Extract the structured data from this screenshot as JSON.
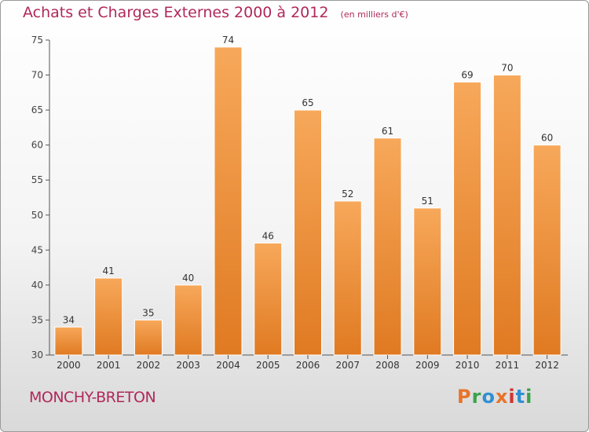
{
  "chart_data": {
    "type": "bar",
    "title": "Achats et Charges Externes 2000 à 2012",
    "unit_label": "(en milliers d'€)",
    "categories": [
      "2000",
      "2001",
      "2002",
      "2003",
      "2004",
      "2005",
      "2006",
      "2007",
      "2008",
      "2009",
      "2010",
      "2011",
      "2012"
    ],
    "values": [
      34,
      41,
      35,
      40,
      74,
      46,
      65,
      52,
      61,
      51,
      69,
      70,
      60
    ],
    "ylim": [
      30,
      75
    ],
    "yticks": [
      30,
      35,
      40,
      45,
      50,
      55,
      60,
      65,
      70,
      75
    ],
    "grid": false,
    "bar_color_light": "#f7a85a",
    "bar_color_dark": "#e07a22",
    "title_color": "#b0285a"
  },
  "footer": {
    "place_name": "MONCHY-BRETON",
    "logo_text": "Proxiti",
    "logo_colors": [
      "#e8732a",
      "#3aa34a",
      "#2f8fd1",
      "#e8732a",
      "#d3342f",
      "#2f8fd1",
      "#3aa34a"
    ]
  }
}
